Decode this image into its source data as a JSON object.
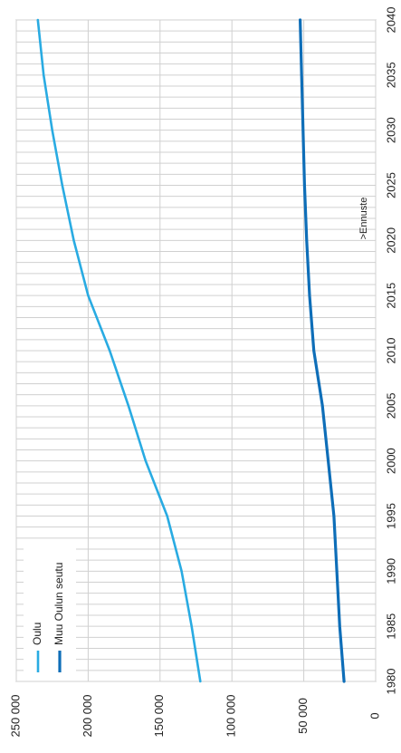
{
  "chart_data": {
    "type": "line",
    "orientation": "rotated-90-ccw",
    "x": [
      1980,
      1985,
      1990,
      1995,
      2000,
      2005,
      2010,
      2015,
      2020,
      2025,
      2030,
      2035,
      2040
    ],
    "x_ticks": [
      "1980",
      "1985",
      "1990",
      "1995",
      "2000",
      "2005",
      "2010",
      "2015",
      "2020",
      "2025",
      "2030",
      "2035",
      "2040"
    ],
    "y_ticks": [
      "0",
      "50 000",
      "100 000",
      "150 000",
      "200 000",
      "250 000"
    ],
    "ylim": [
      0,
      250000
    ],
    "xlim": [
      1980,
      2040
    ],
    "grid": true,
    "legend_position": "upper-left",
    "series": [
      {
        "name": "Oulu",
        "color": "#29abe2",
        "values": [
          122000,
          128000,
          135000,
          145000,
          160000,
          172000,
          185000,
          200000,
          210000,
          218000,
          225000,
          231000,
          235000
        ]
      },
      {
        "name": "Muu Oulun seutu",
        "color": "#0e6eb8",
        "values": [
          22000,
          25000,
          27000,
          29000,
          33000,
          37000,
          43000,
          46000,
          48000,
          49500,
          50500,
          51500,
          52500
        ]
      }
    ],
    "annotations": [
      {
        "text": ">Ennuste",
        "x": 2022
      }
    ]
  }
}
